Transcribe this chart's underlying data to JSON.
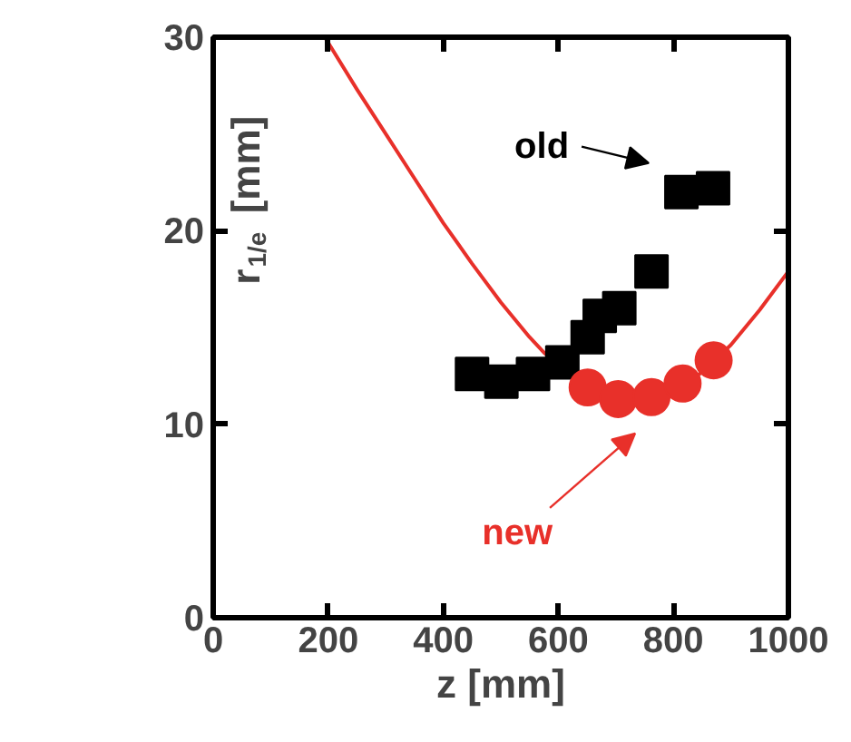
{
  "chart_data": {
    "type": "scatter",
    "xlabel": "z [mm]",
    "ylabel": "r$_{1/e}$ [mm]",
    "xlim": [
      0,
      1000
    ],
    "ylim": [
      0,
      30
    ],
    "xticks": [
      0,
      200,
      400,
      600,
      800,
      1000
    ],
    "yticks": [
      0,
      10,
      20,
      30
    ],
    "grid": false,
    "series": [
      {
        "type": "line",
        "color": "#e8302a",
        "marker": "none",
        "x": [
          194,
          250,
          300,
          350,
          400,
          450,
          500,
          550,
          575,
          650,
          700,
          750,
          800,
          850,
          900,
          950,
          1000
        ],
        "values": [
          30,
          27.3,
          25.0,
          22.7,
          20.4,
          18.3,
          16.3,
          14.5,
          13.7,
          11.8,
          11.1,
          11.0,
          11.6,
          12.7,
          14.1,
          15.9,
          17.9
        ]
      },
      {
        "name": "old",
        "color": "#000000",
        "marker": "square",
        "x": [
          450,
          501,
          556,
          607,
          651,
          672,
          706,
          762,
          814,
          869
        ],
        "values": [
          12.6,
          12.2,
          12.6,
          13.2,
          14.5,
          15.6,
          16.0,
          17.9,
          22.0,
          22.2
        ]
      },
      {
        "name": "new",
        "color": "#e8302a",
        "marker": "circle",
        "x": [
          651,
          704,
          762,
          816,
          870
        ],
        "values": [
          11.9,
          11.3,
          11.4,
          12.1,
          13.3
        ]
      }
    ]
  }
}
